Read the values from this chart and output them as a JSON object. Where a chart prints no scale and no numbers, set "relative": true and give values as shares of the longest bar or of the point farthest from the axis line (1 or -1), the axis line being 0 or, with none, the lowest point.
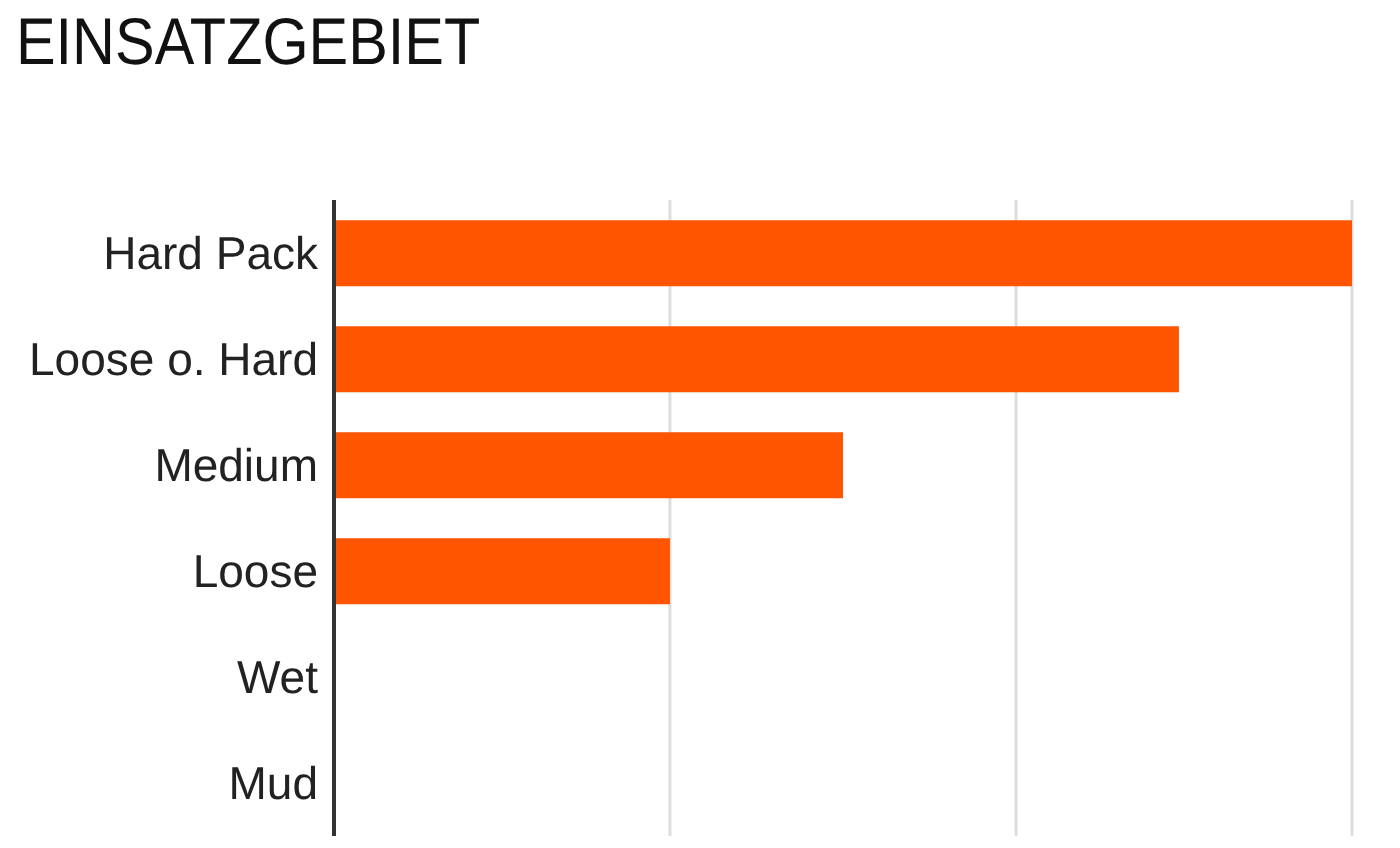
{
  "chart_data": {
    "type": "bar",
    "orientation": "horizontal",
    "relative": true,
    "title": "EINSATZGEBIET",
    "categories": [
      "Hard Pack",
      "Loose o. Hard",
      "Medium",
      "Loose",
      "Wet",
      "Mud"
    ],
    "values": [
      1,
      0.83,
      0.5,
      0.33,
      0,
      0
    ],
    "color": "#ff5500",
    "ref_lines": [
      {
        "axis": "x",
        "value": 0.33,
        "color": "#dddddd"
      },
      {
        "axis": "x",
        "value": 0.67,
        "color": "#dddddd"
      },
      {
        "axis": "x",
        "value": 1,
        "color": "#dddddd"
      }
    ]
  }
}
